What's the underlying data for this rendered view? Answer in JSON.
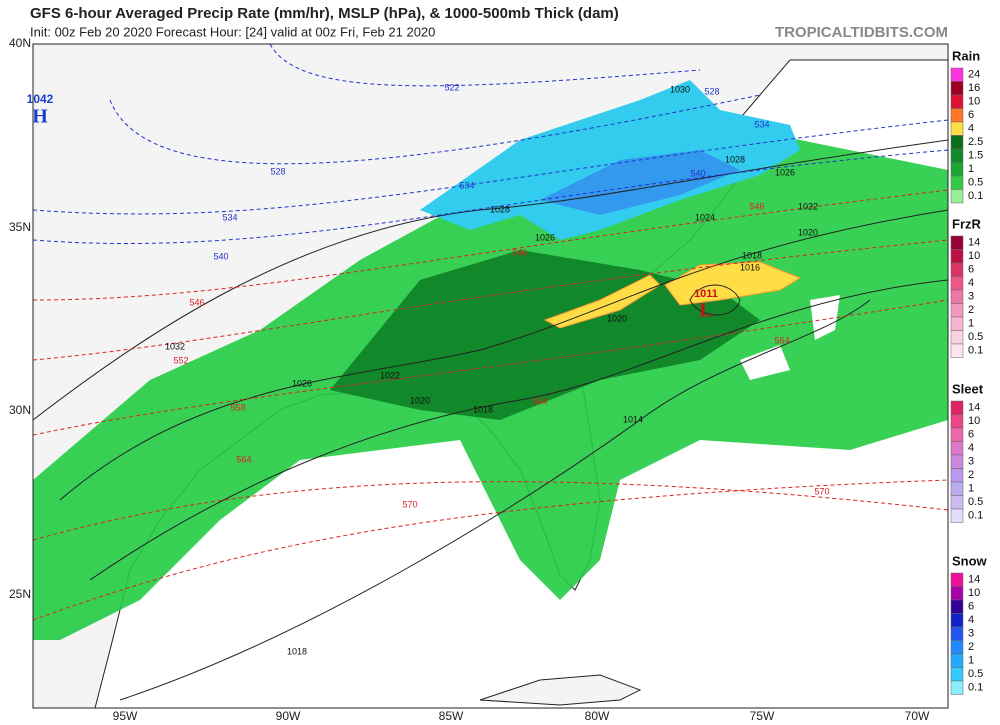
{
  "header": {
    "title": "GFS 6-hour Averaged Precip Rate (mm/hr), MSLP (hPa), & 1000-500mb Thick (dam)",
    "subtitle": "Init: 00z Feb 20 2020   Forecast Hour: [24]   valid at 00z Fri, Feb 21 2020",
    "site": "TROPICALTIDBITS.COM"
  },
  "axes": {
    "lat_labels": [
      "40N",
      "35N",
      "30N",
      "25N"
    ],
    "lon_labels": [
      "95W",
      "90W",
      "85W",
      "80W",
      "75W",
      "70W"
    ]
  },
  "map": {
    "centers": [
      {
        "letter": "H",
        "pressure": "1042",
        "color": "#1a3fcc"
      },
      {
        "letter": "L",
        "pressure": "1011",
        "color": "#cc1111"
      }
    ],
    "isobar_labels": [
      "1030",
      "1028",
      "1026",
      "1028",
      "1026",
      "1024",
      "1022",
      "1020",
      "1018",
      "1016",
      "1032",
      "1026",
      "1022",
      "1020",
      "1018",
      "1020",
      "1014",
      "1018"
    ],
    "thickness_labels": [
      "522",
      "528",
      "534",
      "528",
      "534",
      "534",
      "540",
      "540",
      "546",
      "546",
      "552",
      "558",
      "564",
      "564",
      "564",
      "570",
      "570",
      "546"
    ]
  },
  "legend": [
    {
      "title": "Rain",
      "labels": [
        "24",
        "16",
        "10",
        "6",
        "4",
        "2.5",
        "1.5",
        "1",
        "0.5",
        "0.1"
      ],
      "colors": [
        "#ff33dd",
        "#990022",
        "#dd1133",
        "#ff7722",
        "#ffdd44",
        "#0a6e1c",
        "#118a28",
        "#1aa632",
        "#33cc44",
        "#99ee99"
      ]
    },
    {
      "title": "FrzR",
      "labels": [
        "14",
        "10",
        "6",
        "4",
        "3",
        "2",
        "1",
        "0.5",
        "0.1"
      ],
      "colors": [
        "#990033",
        "#bb1144",
        "#dd3366",
        "#ee5588",
        "#ee77aa",
        "#f399c0",
        "#f7b5d2",
        "#fad0e3",
        "#fde6f0"
      ]
    },
    {
      "title": "Sleet",
      "labels": [
        "14",
        "10",
        "6",
        "4",
        "3",
        "2",
        "1",
        "0.5",
        "0.1"
      ],
      "colors": [
        "#dd2266",
        "#ee4488",
        "#ee66aa",
        "#dd77cc",
        "#cc88dd",
        "#bb99ee",
        "#bbaaee",
        "#ccbbf5",
        "#e4dcfa"
      ]
    },
    {
      "title": "Snow",
      "labels": [
        "14",
        "10",
        "6",
        "4",
        "3",
        "2",
        "1",
        "0.5",
        "0.1"
      ],
      "colors": [
        "#ee1199",
        "#aa00aa",
        "#330099",
        "#1122cc",
        "#2255ee",
        "#2288ff",
        "#22aaff",
        "#33ccff",
        "#88eeff"
      ]
    }
  ]
}
